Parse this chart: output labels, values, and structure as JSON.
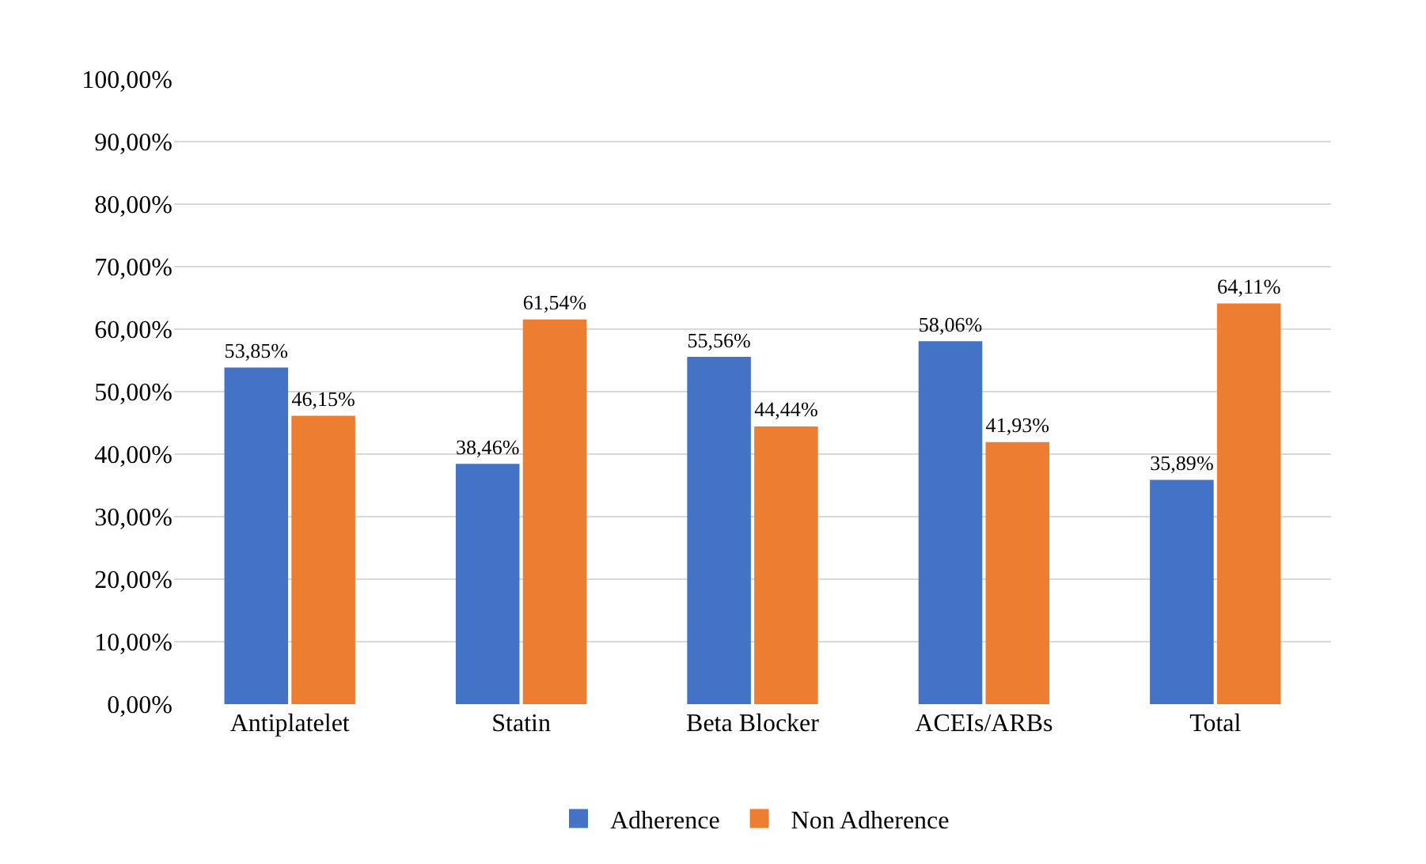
{
  "chart_data": {
    "type": "bar",
    "categories": [
      "Antiplatelet",
      "Statin",
      "Beta Blocker",
      "ACEIs/ARBs",
      "Total"
    ],
    "series": [
      {
        "name": "Adherence",
        "color": "#4472c4",
        "values": [
          53.85,
          38.46,
          55.56,
          58.06,
          35.89
        ],
        "value_labels": [
          "53,85%",
          "38,46%",
          "55,56%",
          "58,06%",
          "35,89%"
        ]
      },
      {
        "name": "Non Adherence",
        "color": "#ed7d31",
        "values": [
          46.15,
          61.54,
          44.44,
          41.93,
          64.11
        ],
        "value_labels": [
          "46,15%",
          "61,54%",
          "44,44%",
          "41,93%",
          "64,11%"
        ]
      }
    ],
    "ylim": [
      0,
      100
    ],
    "yticks": [
      {
        "value": 0,
        "label": "0,00%"
      },
      {
        "value": 10,
        "label": "10,00%"
      },
      {
        "value": 20,
        "label": "20,00%"
      },
      {
        "value": 30,
        "label": "30,00%"
      },
      {
        "value": 40,
        "label": "40,00%"
      },
      {
        "value": 50,
        "label": "50,00%"
      },
      {
        "value": 60,
        "label": "60,00%"
      },
      {
        "value": 70,
        "label": "70,00%"
      },
      {
        "value": 80,
        "label": "80,00%"
      },
      {
        "value": 90,
        "label": "90,00%"
      },
      {
        "value": 100,
        "label": "100,00%"
      }
    ],
    "grid": "y",
    "legend": "bottom"
  }
}
